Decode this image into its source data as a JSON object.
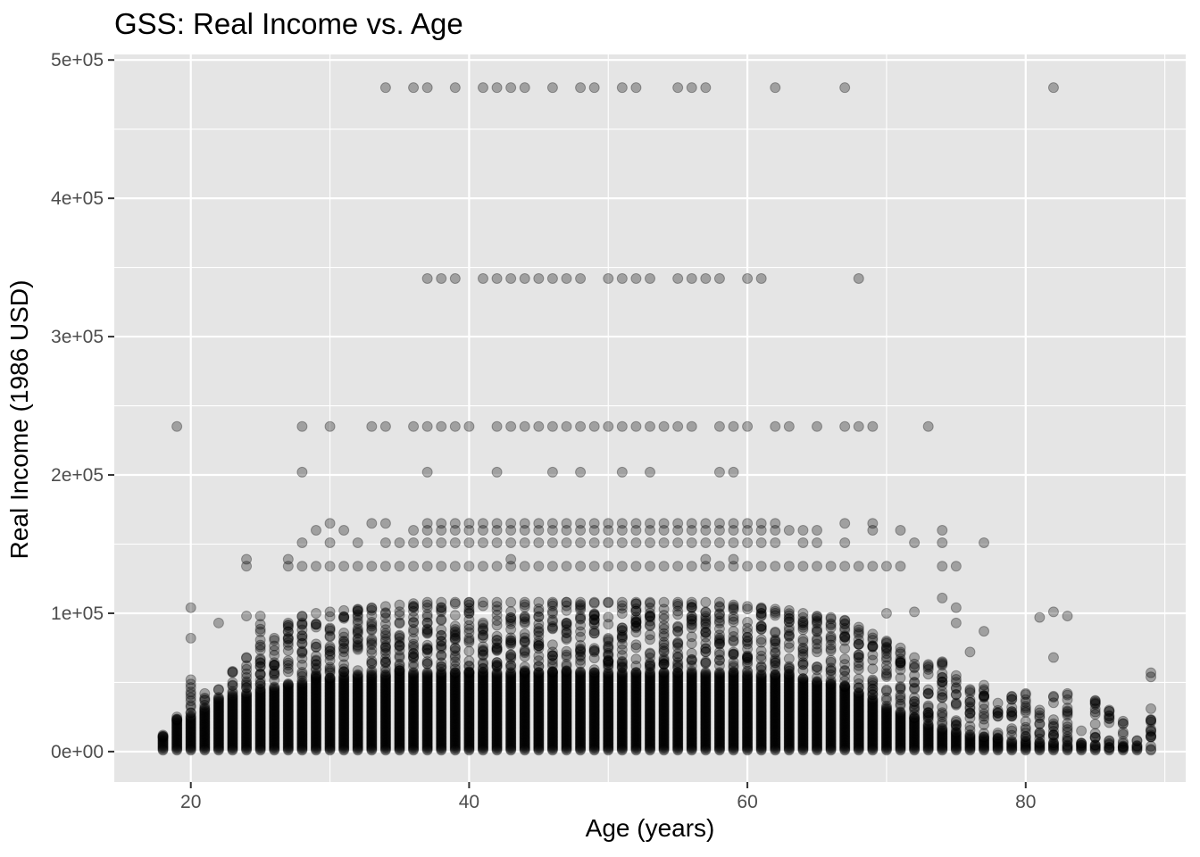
{
  "chart_data": {
    "type": "scatter",
    "title": "GSS: Real Income vs. Age",
    "xlabel": "Age (years)",
    "ylabel": "Real Income (1986 USD)",
    "xlim": [
      14.5,
      91.5
    ],
    "ylim": [
      -22000,
      504000
    ],
    "x_ticks": [
      20,
      40,
      60,
      80
    ],
    "x_tick_labels": [
      "20",
      "40",
      "60",
      "80"
    ],
    "y_ticks": [
      0,
      100000,
      200000,
      300000,
      400000,
      500000
    ],
    "y_tick_labels": [
      "0e+00",
      "1e+05",
      "2e+05",
      "3e+05",
      "4e+05",
      "5e+05"
    ],
    "grid": true,
    "point_color": "#000000",
    "point_alpha": 0.3,
    "panel_background": "#e5e5e5",
    "grid_color": "#ffffff",
    "dense_bands": [
      {
        "age": 18,
        "max": 10000
      },
      {
        "age": 19,
        "max": 22000
      },
      {
        "age": 20,
        "max": 26000
      },
      {
        "age": 21,
        "max": 32000
      },
      {
        "age": 22,
        "max": 38000
      },
      {
        "age": 23,
        "max": 40000
      },
      {
        "age": 24,
        "max": 42000
      },
      {
        "age": 25,
        "max": 45000
      },
      {
        "age": 26,
        "max": 47000
      },
      {
        "age": 27,
        "max": 48000
      },
      {
        "age": 28,
        "max": 50000
      },
      {
        "age": 29,
        "max": 52000
      },
      {
        "age": 30,
        "max": 53000
      },
      {
        "age": 31,
        "max": 54000
      },
      {
        "age": 32,
        "max": 55000
      },
      {
        "age": 33,
        "max": 56000
      },
      {
        "age": 34,
        "max": 56000
      },
      {
        "age": 35,
        "max": 57000
      },
      {
        "age": 36,
        "max": 57000
      },
      {
        "age": 37,
        "max": 57000
      },
      {
        "age": 38,
        "max": 57000
      },
      {
        "age": 39,
        "max": 57000
      },
      {
        "age": 40,
        "max": 57000
      },
      {
        "age": 41,
        "max": 57000
      },
      {
        "age": 42,
        "max": 57000
      },
      {
        "age": 43,
        "max": 57000
      },
      {
        "age": 44,
        "max": 57000
      },
      {
        "age": 45,
        "max": 57000
      },
      {
        "age": 46,
        "max": 57000
      },
      {
        "age": 47,
        "max": 57000
      },
      {
        "age": 48,
        "max": 57000
      },
      {
        "age": 49,
        "max": 57000
      },
      {
        "age": 50,
        "max": 57000
      },
      {
        "age": 51,
        "max": 57000
      },
      {
        "age": 52,
        "max": 57000
      },
      {
        "age": 53,
        "max": 57000
      },
      {
        "age": 54,
        "max": 57000
      },
      {
        "age": 55,
        "max": 57000
      },
      {
        "age": 56,
        "max": 57000
      },
      {
        "age": 57,
        "max": 57000
      },
      {
        "age": 58,
        "max": 57000
      },
      {
        "age": 59,
        "max": 56000
      },
      {
        "age": 60,
        "max": 56000
      },
      {
        "age": 61,
        "max": 56000
      },
      {
        "age": 62,
        "max": 55000
      },
      {
        "age": 63,
        "max": 55000
      },
      {
        "age": 64,
        "max": 52000
      },
      {
        "age": 65,
        "max": 50000
      },
      {
        "age": 66,
        "max": 48000
      },
      {
        "age": 67,
        "max": 46000
      },
      {
        "age": 68,
        "max": 42000
      },
      {
        "age": 69,
        "max": 38000
      },
      {
        "age": 70,
        "max": 32000
      },
      {
        "age": 71,
        "max": 28000
      },
      {
        "age": 72,
        "max": 24000
      },
      {
        "age": 73,
        "max": 20000
      },
      {
        "age": 74,
        "max": 16000
      },
      {
        "age": 75,
        "max": 14000
      },
      {
        "age": 76,
        "max": 12000
      },
      {
        "age": 77,
        "max": 10000
      },
      {
        "age": 78,
        "max": 9000
      },
      {
        "age": 79,
        "max": 8000
      },
      {
        "age": 80,
        "max": 7000
      },
      {
        "age": 81,
        "max": 6000
      },
      {
        "age": 82,
        "max": 5000
      },
      {
        "age": 83,
        "max": 5000
      },
      {
        "age": 84,
        "max": 4000
      },
      {
        "age": 85,
        "max": 4000
      },
      {
        "age": 86,
        "max": 3000
      },
      {
        "age": 87,
        "max": 3000
      },
      {
        "age": 88,
        "max": 3000
      },
      {
        "age": 89,
        "max": 2000
      }
    ],
    "upper_envelope": [
      {
        "age": 18,
        "max": 12000
      },
      {
        "age": 19,
        "max": 25000
      },
      {
        "age": 20,
        "max": 52000
      },
      {
        "age": 21,
        "max": 42000
      },
      {
        "age": 22,
        "max": 45000
      },
      {
        "age": 23,
        "max": 58000
      },
      {
        "age": 24,
        "max": 68000
      },
      {
        "age": 25,
        "max": 92000
      },
      {
        "age": 26,
        "max": 82000
      },
      {
        "age": 27,
        "max": 93000
      },
      {
        "age": 28,
        "max": 98000
      },
      {
        "age": 29,
        "max": 100000
      },
      {
        "age": 30,
        "max": 101000
      },
      {
        "age": 31,
        "max": 102000
      },
      {
        "age": 32,
        "max": 103000
      },
      {
        "age": 33,
        "max": 104000
      },
      {
        "age": 34,
        "max": 105000
      },
      {
        "age": 35,
        "max": 106000
      },
      {
        "age": 36,
        "max": 107000
      },
      {
        "age": 37,
        "max": 108000
      },
      {
        "age": 38,
        "max": 108000
      },
      {
        "age": 39,
        "max": 108000
      },
      {
        "age": 40,
        "max": 108000
      },
      {
        "age": 41,
        "max": 108000
      },
      {
        "age": 42,
        "max": 108000
      },
      {
        "age": 43,
        "max": 108000
      },
      {
        "age": 44,
        "max": 108000
      },
      {
        "age": 45,
        "max": 108000
      },
      {
        "age": 46,
        "max": 108000
      },
      {
        "age": 47,
        "max": 108000
      },
      {
        "age": 48,
        "max": 108000
      },
      {
        "age": 49,
        "max": 108000
      },
      {
        "age": 50,
        "max": 108000
      },
      {
        "age": 51,
        "max": 108000
      },
      {
        "age": 52,
        "max": 108000
      },
      {
        "age": 53,
        "max": 108000
      },
      {
        "age": 54,
        "max": 108000
      },
      {
        "age": 55,
        "max": 108000
      },
      {
        "age": 56,
        "max": 108000
      },
      {
        "age": 57,
        "max": 108000
      },
      {
        "age": 58,
        "max": 108000
      },
      {
        "age": 59,
        "max": 106000
      },
      {
        "age": 60,
        "max": 105000
      },
      {
        "age": 61,
        "max": 104000
      },
      {
        "age": 62,
        "max": 103000
      },
      {
        "age": 63,
        "max": 102000
      },
      {
        "age": 64,
        "max": 100000
      },
      {
        "age": 65,
        "max": 98000
      },
      {
        "age": 66,
        "max": 97000
      },
      {
        "age": 67,
        "max": 95000
      },
      {
        "age": 68,
        "max": 90000
      },
      {
        "age": 69,
        "max": 85000
      },
      {
        "age": 70,
        "max": 80000
      },
      {
        "age": 71,
        "max": 75000
      },
      {
        "age": 72,
        "max": 68000
      },
      {
        "age": 73,
        "max": 62000
      },
      {
        "age": 74,
        "max": 65000
      },
      {
        "age": 75,
        "max": 55000
      },
      {
        "age": 76,
        "max": 45000
      },
      {
        "age": 77,
        "max": 48000
      },
      {
        "age": 78,
        "max": 35000
      },
      {
        "age": 79,
        "max": 40000
      },
      {
        "age": 80,
        "max": 42000
      },
      {
        "age": 81,
        "max": 30000
      },
      {
        "age": 82,
        "max": 40000
      },
      {
        "age": 83,
        "max": 42000
      },
      {
        "age": 84,
        "max": 15000
      },
      {
        "age": 85,
        "max": 37000
      },
      {
        "age": 86,
        "max": 30000
      },
      {
        "age": 87,
        "max": 22000
      },
      {
        "age": 88,
        "max": 8000
      },
      {
        "age": 89,
        "max": 31000
      }
    ],
    "high_income_levels": [
      {
        "y": 480000,
        "ages": [
          34,
          36,
          37,
          39,
          41,
          42,
          43,
          44,
          46,
          48,
          49,
          51,
          52,
          55,
          56,
          57,
          62,
          67,
          82
        ]
      },
      {
        "y": 342000,
        "ages": [
          37,
          38,
          39,
          41,
          42,
          43,
          44,
          45,
          46,
          47,
          48,
          50,
          51,
          52,
          53,
          55,
          56,
          57,
          58,
          60,
          61,
          68
        ]
      },
      {
        "y": 235000,
        "ages": [
          19,
          28,
          30,
          33,
          34,
          36,
          37,
          38,
          39,
          40,
          42,
          43,
          44,
          45,
          46,
          47,
          48,
          49,
          50,
          51,
          52,
          53,
          54,
          55,
          56,
          58,
          59,
          60,
          62,
          63,
          65,
          67,
          68,
          69,
          73
        ]
      },
      {
        "y": 202000,
        "ages": [
          28,
          37,
          42,
          46,
          48,
          51,
          53,
          58,
          59
        ]
      },
      {
        "y": 165000,
        "ages": [
          30,
          33,
          34,
          37,
          38,
          39,
          40,
          41,
          42,
          43,
          44,
          45,
          46,
          47,
          48,
          49,
          50,
          51,
          52,
          53,
          54,
          55,
          56,
          57,
          58,
          59,
          60,
          61,
          62,
          67,
          69
        ]
      },
      {
        "y": 160000,
        "ages": [
          29,
          31,
          36,
          37,
          38,
          39,
          40,
          41,
          42,
          43,
          44,
          45,
          46,
          47,
          48,
          49,
          50,
          51,
          52,
          53,
          54,
          55,
          56,
          57,
          58,
          59,
          60,
          61,
          62,
          63,
          64,
          65,
          69,
          71,
          74
        ]
      },
      {
        "y": 151000,
        "ages": [
          28,
          30,
          32,
          34,
          35,
          36,
          37,
          38,
          39,
          40,
          41,
          42,
          43,
          44,
          45,
          46,
          47,
          48,
          49,
          50,
          51,
          52,
          53,
          54,
          55,
          56,
          57,
          58,
          59,
          60,
          61,
          62,
          64,
          65,
          67,
          72,
          74,
          77
        ]
      },
      {
        "y": 134000,
        "ages": [
          24,
          27,
          28,
          29,
          30,
          31,
          32,
          33,
          34,
          35,
          36,
          37,
          38,
          39,
          40,
          41,
          42,
          43,
          44,
          45,
          46,
          47,
          48,
          49,
          50,
          51,
          52,
          53,
          54,
          55,
          56,
          57,
          58,
          59,
          60,
          61,
          62,
          63,
          64,
          65,
          66,
          67,
          68,
          69,
          70,
          71,
          74,
          75
        ]
      },
      {
        "y": 139000,
        "ages": [
          24,
          27,
          43,
          57,
          59
        ]
      }
    ],
    "sparse_points": [
      {
        "x": 20,
        "y": 82000
      },
      {
        "x": 20,
        "y": 104000
      },
      {
        "x": 22,
        "y": 93000
      },
      {
        "x": 24,
        "y": 98000
      },
      {
        "x": 25,
        "y": 98000
      },
      {
        "x": 75,
        "y": 104000
      },
      {
        "x": 75,
        "y": 93000
      },
      {
        "x": 76,
        "y": 72000
      },
      {
        "x": 77,
        "y": 87000
      },
      {
        "x": 81,
        "y": 97000
      },
      {
        "x": 82,
        "y": 101000
      },
      {
        "x": 83,
        "y": 98000
      },
      {
        "x": 82,
        "y": 68000
      },
      {
        "x": 89,
        "y": 57000
      },
      {
        "x": 89,
        "y": 54000
      },
      {
        "x": 86,
        "y": 29000
      },
      {
        "x": 87,
        "y": 20000
      },
      {
        "x": 73,
        "y": 63000
      },
      {
        "x": 74,
        "y": 111000
      },
      {
        "x": 72,
        "y": 101000
      },
      {
        "x": 70,
        "y": 100000
      }
    ]
  }
}
